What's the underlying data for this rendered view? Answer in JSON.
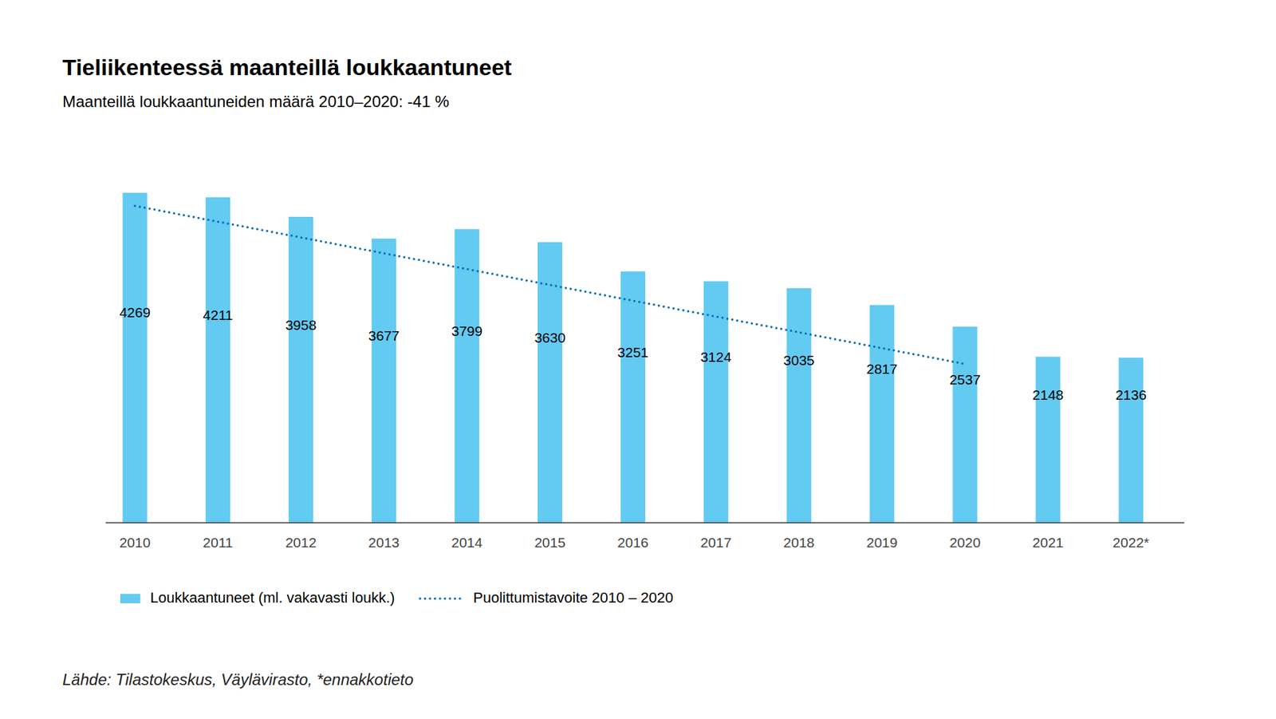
{
  "chart_data": {
    "type": "bar",
    "title": "Tieliikenteessä maanteillä loukkaantuneet",
    "subtitle": "Maanteillä loukkaantuneiden määrä 2010–2020: -41 %",
    "source": "Lähde: Tilastokeskus, Väylävirasto, *ennakkotieto",
    "categories": [
      "2010",
      "2011",
      "2012",
      "2013",
      "2014",
      "2015",
      "2016",
      "2017",
      "2018",
      "2019",
      "2020",
      "2021",
      "2022*"
    ],
    "series": [
      {
        "name": "Loukkaantuneet (ml. vakavasti loukk.)",
        "type": "bar",
        "color": "#63caf2",
        "values": [
          4269,
          4211,
          3958,
          3677,
          3799,
          3630,
          3251,
          3124,
          3035,
          2817,
          2537,
          2148,
          2136
        ]
      },
      {
        "name": "Puolittumistavoite 2010 – 2020",
        "type": "line",
        "line_style": "dotted",
        "color": "#0a6eb4",
        "values": [
          4100,
          3895,
          3691,
          3486,
          3282,
          3077,
          2873,
          2668,
          2464,
          2259,
          2055,
          null,
          null
        ]
      }
    ],
    "ylim": [
      0,
      4500
    ],
    "tick_labels": "x",
    "data_labels": true,
    "grid": false,
    "legend": "bottom"
  }
}
